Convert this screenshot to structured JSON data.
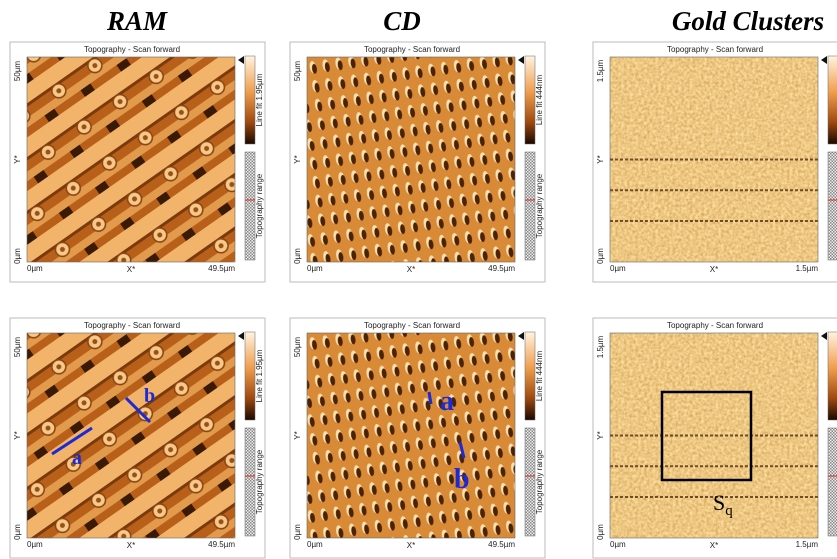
{
  "columns": [
    {
      "title": "RAM"
    },
    {
      "title": "CD"
    },
    {
      "title": "Gold Clusters"
    }
  ],
  "panels": [
    {
      "heading": "Topography - Scan forward",
      "y_top": "50µm",
      "y_bottom": "0µm",
      "x_left": "0µm",
      "x_right": "49.5µm",
      "x_axis": "X*",
      "y_axis": "Y*",
      "colorbar_label": "Line fit 1.95µm",
      "range_label": "Topography range"
    },
    {
      "heading": "Topography - Scan forward",
      "y_top": "50µm",
      "y_bottom": "0µm",
      "x_left": "0µm",
      "x_right": "49.5µm",
      "x_axis": "X*",
      "y_axis": "Y*",
      "colorbar_label": "Line fit 444nm",
      "range_label": "Topography range"
    },
    {
      "heading": "Topography - Scan forward",
      "y_top": "1.5µm",
      "y_bottom": "0µm",
      "x_left": "0µm",
      "x_right": "1.5µm",
      "x_axis": "X*",
      "y_axis": "Y*"
    },
    {
      "heading": "Topography - Scan forward",
      "y_top": "50µm",
      "y_bottom": "0µm",
      "x_left": "0µm",
      "x_right": "49.5µm",
      "x_axis": "X*",
      "y_axis": "Y*",
      "colorbar_label": "Line fit 1.95µm",
      "range_label": "Topography range",
      "annotations": [
        "a",
        "b"
      ]
    },
    {
      "heading": "Topography - Scan forward",
      "y_top": "50µm",
      "y_bottom": "0µm",
      "x_left": "0µm",
      "x_right": "49.5µm",
      "x_axis": "X*",
      "y_axis": "Y*",
      "colorbar_label": "Line fit 444nm",
      "range_label": "Topography range",
      "annotations": [
        "a",
        "b"
      ]
    },
    {
      "heading": "Topography - Scan forward",
      "y_top": "1.5µm",
      "y_bottom": "0µm",
      "x_left": "0µm",
      "x_right": "1.5µm",
      "x_axis": "X*",
      "y_axis": "Y*",
      "roughness": {
        "main": "S",
        "sub": "q"
      }
    }
  ]
}
